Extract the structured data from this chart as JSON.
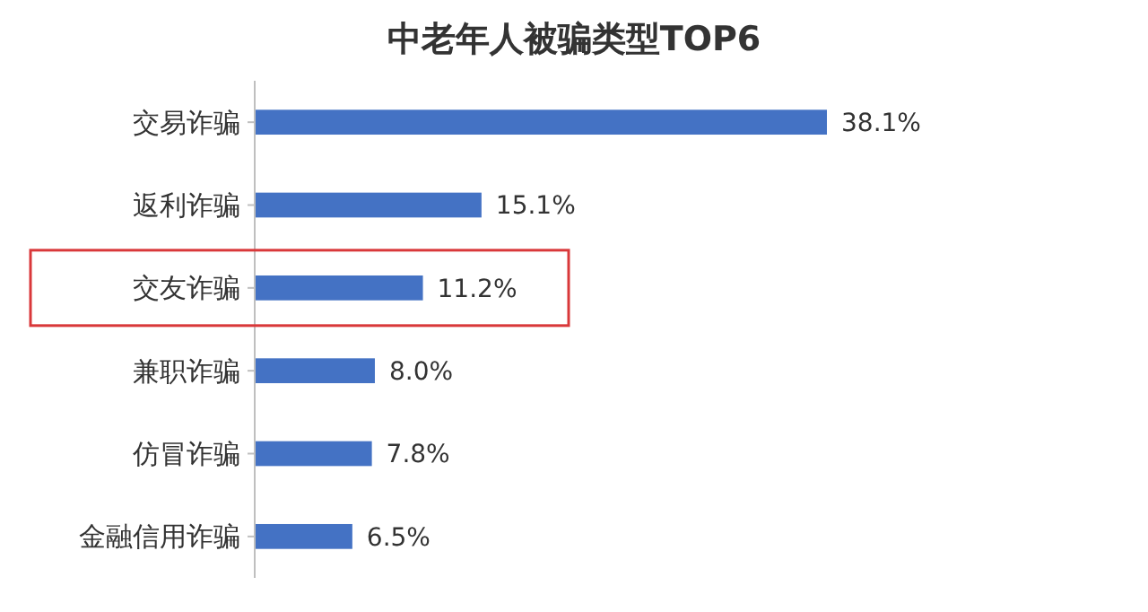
{
  "chart_data": {
    "type": "bar",
    "orientation": "horizontal",
    "title": "中老年人被骗类型TOP6",
    "categories": [
      "交易诈骗",
      "返利诈骗",
      "交友诈骗",
      "兼职诈骗",
      "仿冒诈骗",
      "金融信用诈骗"
    ],
    "values": [
      38.1,
      15.1,
      11.2,
      8.0,
      7.8,
      6.5
    ],
    "value_labels": [
      "38.1%",
      "15.1%",
      "11.2%",
      "8.0%",
      "7.8%",
      "6.5%"
    ],
    "color": "#4472c4"
  }
}
